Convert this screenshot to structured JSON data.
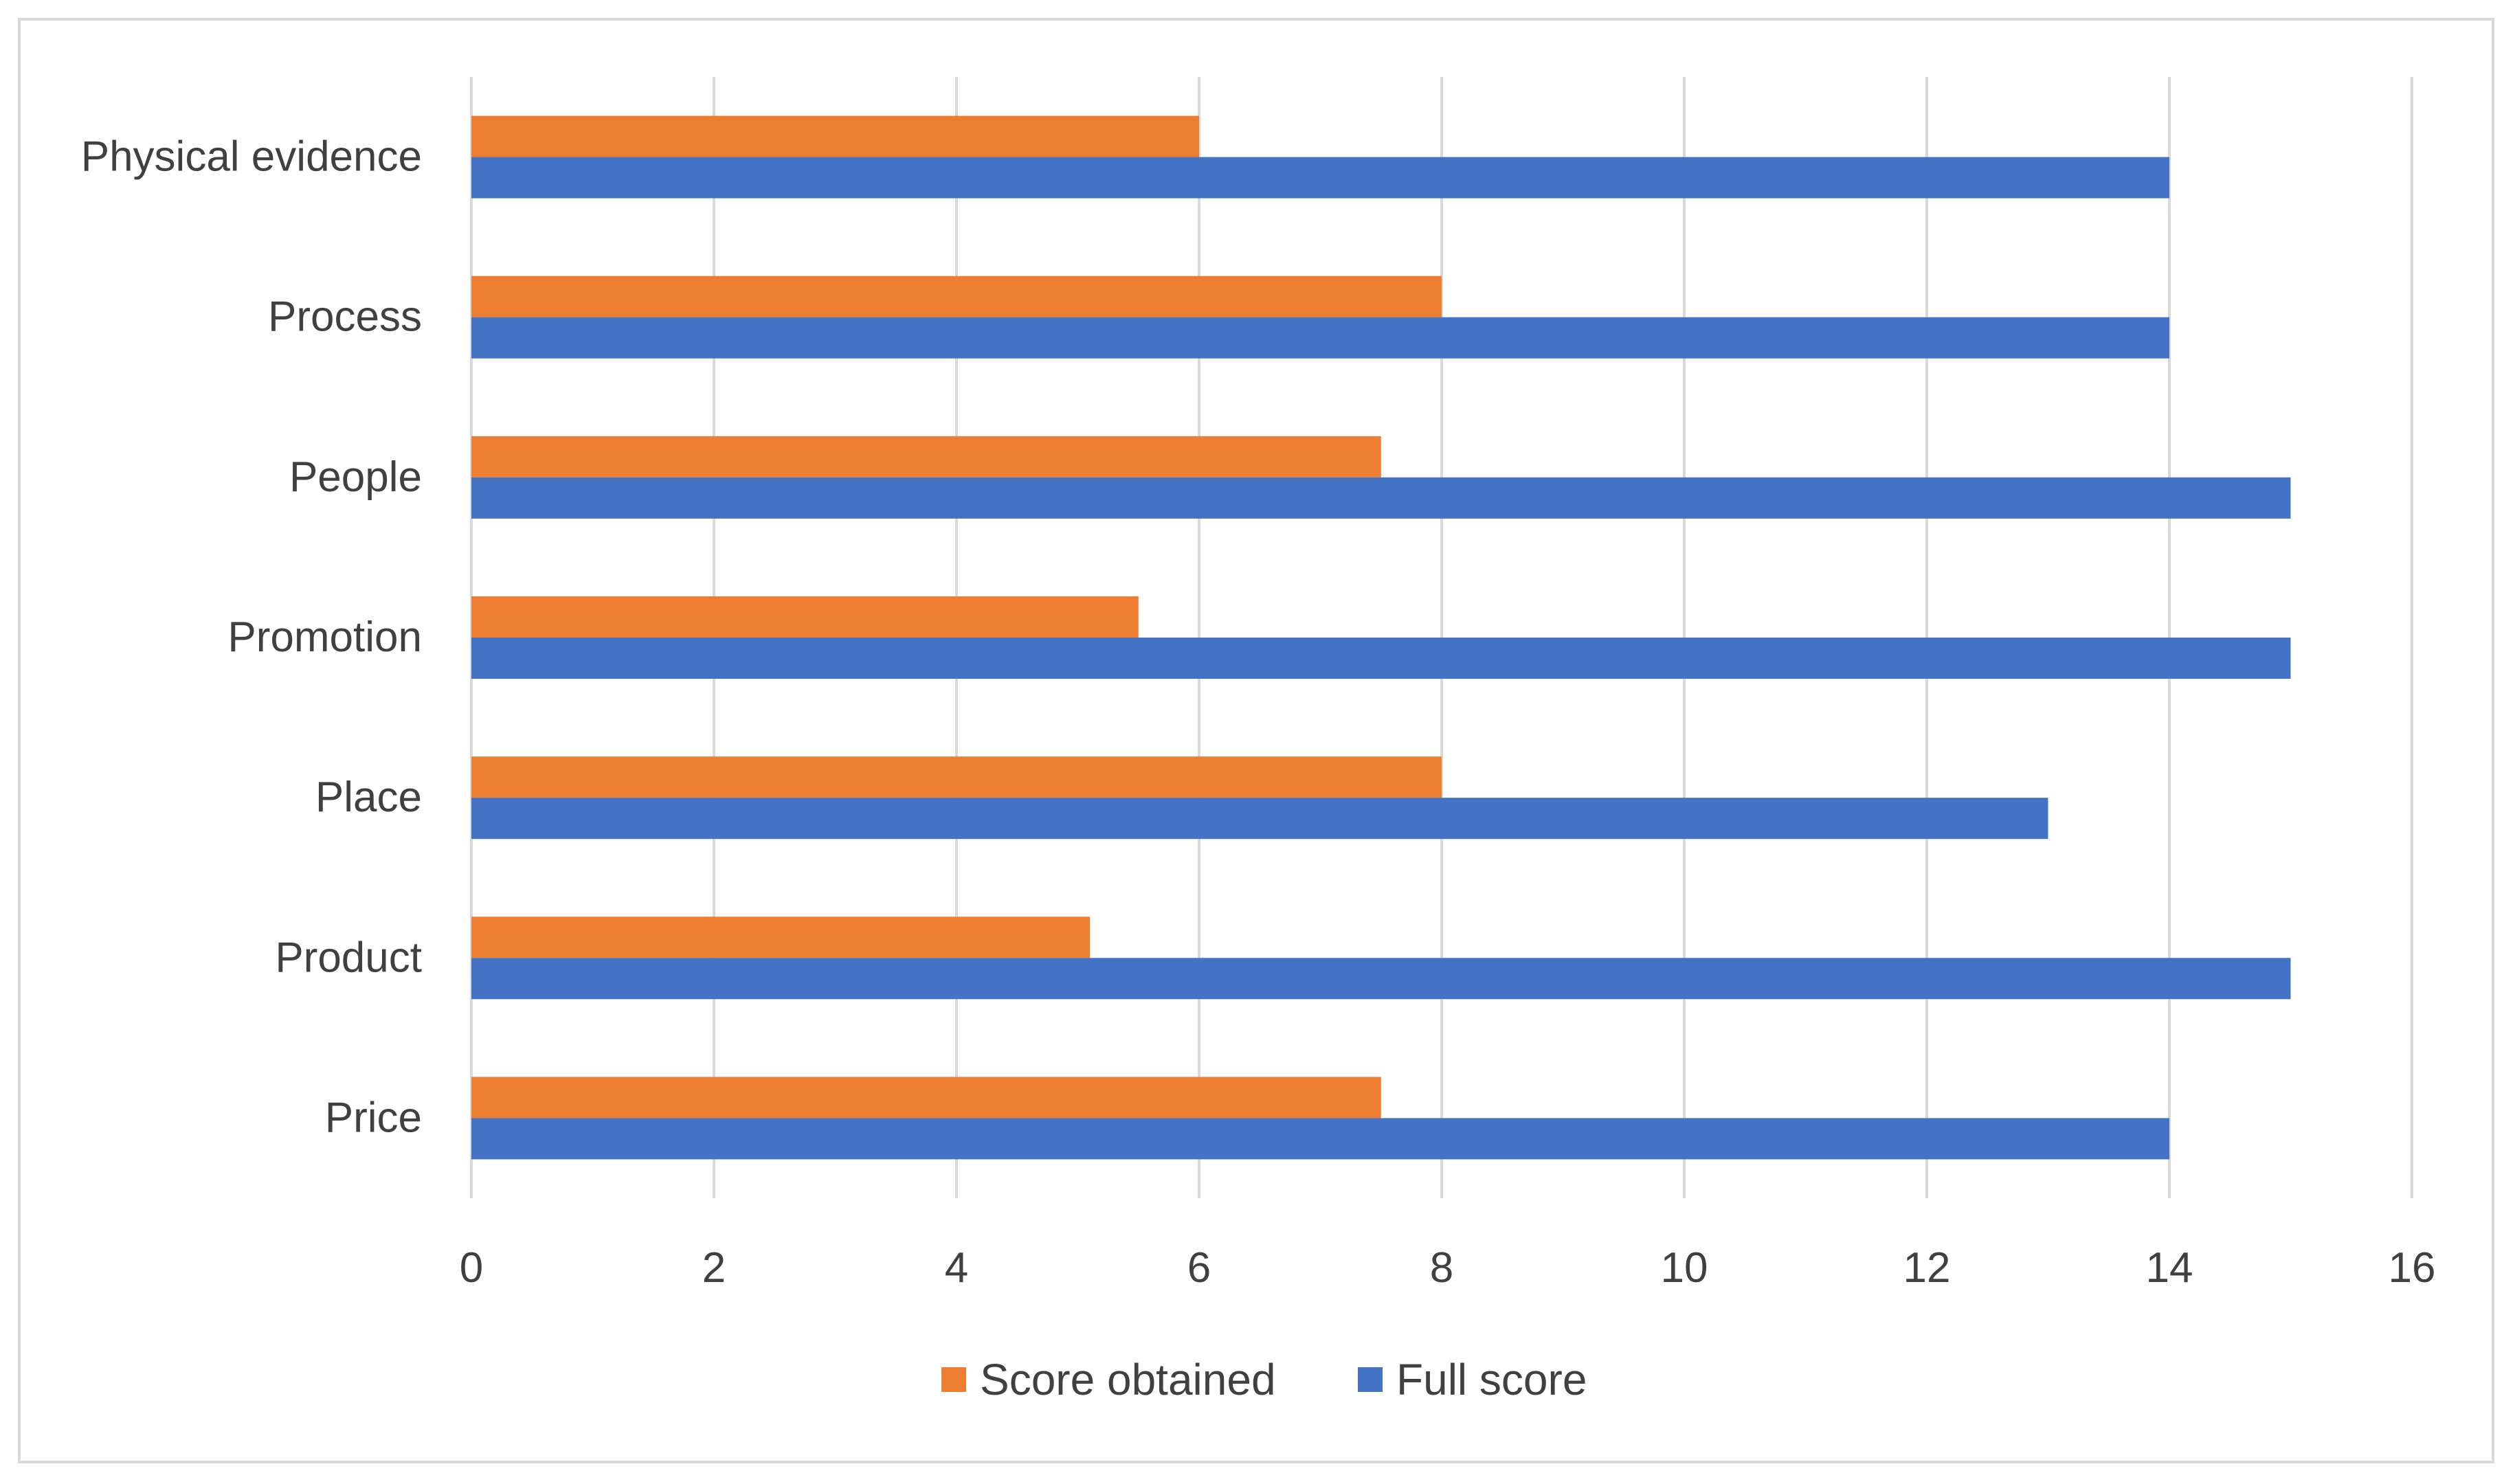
{
  "chart_data": {
    "type": "bar",
    "orientation": "horizontal",
    "title": "",
    "xlabel": "",
    "ylabel": "",
    "categories": [
      "Physical evidence",
      "Process",
      "People",
      "Promotion",
      "Place",
      "Product",
      "Price"
    ],
    "series": [
      {
        "name": "Score obtained",
        "color": "#ED7D31",
        "values": [
          6,
          8,
          7.5,
          5.5,
          8,
          5.1,
          7.5
        ]
      },
      {
        "name": "Full score",
        "color": "#4472C4",
        "values": [
          14,
          14,
          15,
          15,
          13,
          15,
          14
        ]
      }
    ],
    "xlim": [
      0,
      16
    ],
    "xticks": [
      "0",
      "2",
      "4",
      "6",
      "8",
      "10",
      "12",
      "14",
      "16"
    ],
    "grid": "vertical",
    "grid_color": "#d9d9d9",
    "legend_position": "bottom"
  }
}
